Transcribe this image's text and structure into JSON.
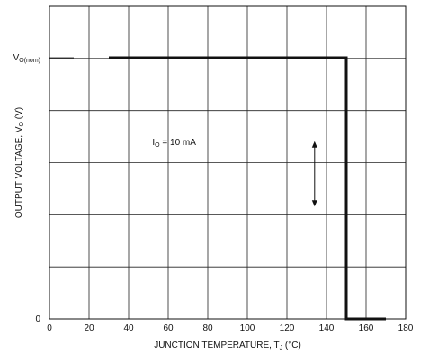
{
  "chart_data": {
    "type": "line",
    "xlabel": {
      "prefix": "JUNCTION TEMPERATURE, T",
      "subscript": "J",
      "suffix": " (°C)"
    },
    "ylabel": {
      "prefix": "OUTPUT VOLTAGE, V",
      "subscript": "O",
      "suffix": " (V)"
    },
    "xlim": [
      0,
      180
    ],
    "ylim": [
      0,
      5
    ],
    "x_ticks": [
      0,
      20,
      40,
      60,
      80,
      100,
      120,
      140,
      160,
      180
    ],
    "x_tick_labels": [
      "0",
      "20",
      "40",
      "60",
      "80",
      "100",
      "120",
      "140",
      "160",
      "180"
    ],
    "y_ticks": [
      0,
      5
    ],
    "y_tick_labels": [
      {
        "main": "0",
        "sub": ""
      },
      {
        "main": "V",
        "sub": "O(nom)"
      }
    ],
    "grid": true,
    "series": [
      {
        "color": "#111111",
        "x": [
          30,
          150,
          150,
          170
        ],
        "y": [
          5,
          5,
          0,
          0
        ]
      }
    ],
    "annotations": [
      {
        "type": "text",
        "prefix": "I",
        "subscript": "O",
        "suffix": " = 10 mA",
        "x": 52,
        "y": 3.4
      },
      {
        "type": "double-arrow",
        "x": 134,
        "y_start": 3.4,
        "y_end": 2.15
      }
    ]
  }
}
